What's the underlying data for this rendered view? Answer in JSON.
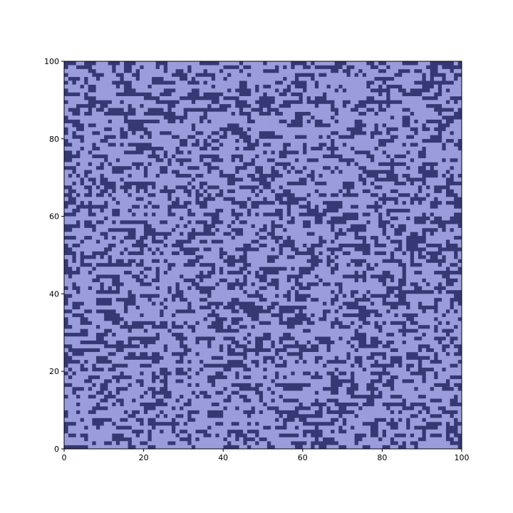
{
  "chart_data": {
    "type": "heatmap",
    "title": "",
    "xlabel": "",
    "ylabel": "",
    "xlim": [
      0,
      100
    ],
    "ylim": [
      0,
      100
    ],
    "grid": false,
    "legend": "none",
    "rows": 100,
    "cols": 100,
    "x_ticks": [
      "0",
      "20",
      "40",
      "60",
      "80",
      "100"
    ],
    "y_ticks": [
      "0",
      "20",
      "40",
      "60",
      "80",
      "100"
    ],
    "x_tick_values": [
      0,
      20,
      40,
      60,
      80,
      100
    ],
    "y_tick_values": [
      0,
      20,
      40,
      60,
      80,
      100
    ],
    "colors": {
      "low": "#363874",
      "high": "#9b9cdc",
      "frame": "#000000"
    },
    "light_fraction": 0.47
  }
}
